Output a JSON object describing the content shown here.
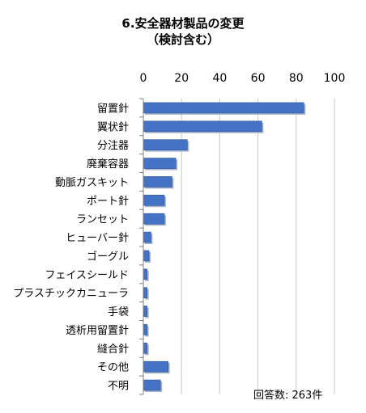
{
  "chart_data": {
    "type": "bar",
    "orientation": "horizontal",
    "title": "6.安全器材製品の変更",
    "subtitle": "（検討含む）",
    "categories": [
      "留置針",
      "翼状針",
      "分注器",
      "廃棄容器",
      "動脈ガスキット",
      "ポート針",
      "ランセット",
      "ヒューバー針",
      "ゴーグル",
      "フェイスシールド",
      "プラスチックカニューラ",
      "手袋",
      "透析用留置針",
      "縫合針",
      "その他",
      "不明"
    ],
    "values": [
      84,
      62,
      23,
      17,
      15,
      11,
      11,
      4,
      3,
      2,
      2,
      2,
      2,
      2,
      13,
      9
    ],
    "xlim": [
      0,
      100
    ],
    "xticks": [
      0,
      20,
      40,
      60,
      80,
      100
    ],
    "xaxis_position": "top",
    "grid": true,
    "bar_color": "#4472c4",
    "note": "回答数: 263件"
  }
}
